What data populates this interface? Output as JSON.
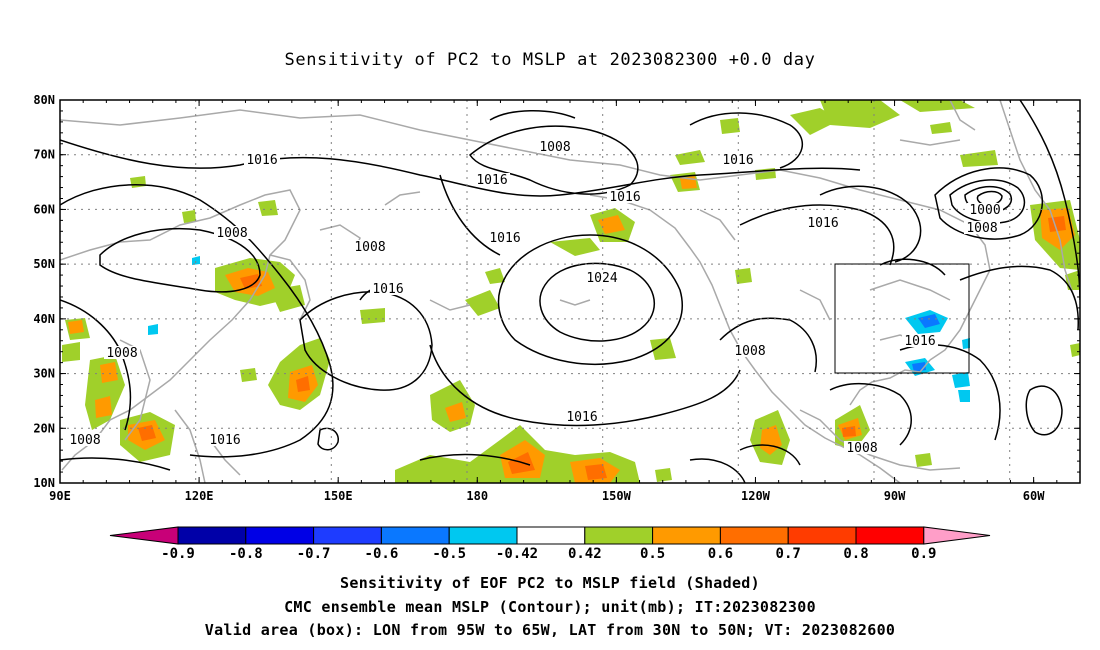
{
  "title": "Sensitivity of PC2 to MSLP at 2023082300 +0.0 day",
  "map": {
    "lat_labels": [
      "80N",
      "70N",
      "60N",
      "50N",
      "40N",
      "30N",
      "20N",
      "10N"
    ],
    "lon_labels": [
      "90E",
      "120E",
      "150E",
      "180",
      "150W",
      "120W",
      "90W",
      "60W"
    ],
    "lon_range": [
      "90E",
      "50W"
    ],
    "lat_range": [
      "10N",
      "80N"
    ],
    "contour_labels": [
      {
        "id": "c1",
        "text": "1008"
      },
      {
        "id": "c2",
        "text": "1016"
      },
      {
        "id": "c3",
        "text": "1016"
      },
      {
        "id": "c4",
        "text": "1016"
      },
      {
        "id": "c5",
        "text": "1016"
      },
      {
        "id": "c6",
        "text": "1016"
      },
      {
        "id": "c7",
        "text": "1008"
      },
      {
        "id": "c8",
        "text": "1016"
      },
      {
        "id": "c9",
        "text": "1008"
      },
      {
        "id": "c10",
        "text": "1016"
      },
      {
        "id": "c11",
        "text": "1024"
      },
      {
        "id": "c12",
        "text": "1016"
      },
      {
        "id": "c13",
        "text": "1008"
      },
      {
        "id": "c14",
        "text": "1008"
      },
      {
        "id": "c15",
        "text": "1008"
      },
      {
        "id": "c16",
        "text": "1008"
      },
      {
        "id": "c17",
        "text": "1016"
      },
      {
        "id": "c18",
        "text": "1000"
      },
      {
        "id": "c19",
        "text": "1008"
      },
      {
        "id": "c20",
        "text": "1016"
      }
    ],
    "valid_box": {
      "lon": [
        "95W",
        "65W"
      ],
      "lat": [
        "30N",
        "50N"
      ]
    },
    "contour_color": "#000000",
    "coast_color": "#a9a9a9",
    "grid_color": "#808080"
  },
  "colorbar": {
    "labels": [
      "-0.9",
      "-0.8",
      "-0.7",
      "-0.6",
      "-0.5",
      "-0.42",
      "0.42",
      "0.5",
      "0.6",
      "0.7",
      "0.8",
      "0.9"
    ],
    "colors": [
      "#0000a8",
      "#0000e6",
      "#1e3cff",
      "#0a78ff",
      "#00c8f0",
      "#ffffff",
      "#a0d02a",
      "#ff9a00",
      "#ff6e00",
      "#ff3c00",
      "#ff0000"
    ],
    "under_color": "#c80078",
    "over_color": "#ff9ec8"
  },
  "caption": {
    "line1": "Sensitivity of EOF PC2 to MSLP field (Shaded)",
    "line2": "CMC ensemble mean MSLP (Contour); unit(mb); IT:2023082300",
    "line3": "Valid area (box): LON from 95W to 65W, LAT from 30N to 50N; VT: 2023082600"
  }
}
